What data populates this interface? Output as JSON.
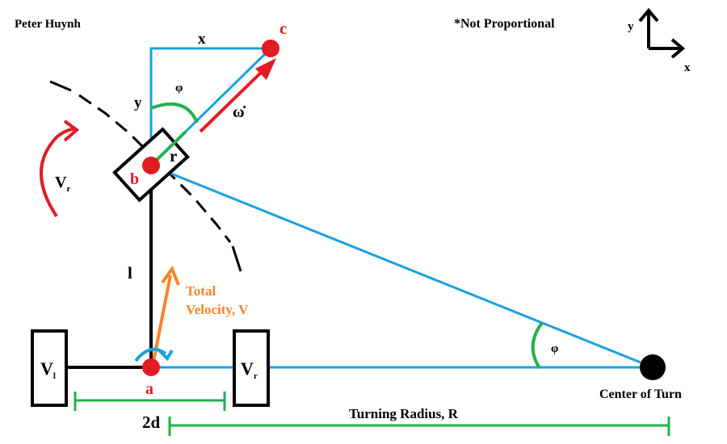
{
  "author": "Peter Huynh",
  "note": "*Not Proportional",
  "axes": {
    "x": "x",
    "y": "y"
  },
  "points": {
    "a": "a",
    "b": "b",
    "c": "c",
    "center": "Center of Turn"
  },
  "labels": {
    "x_offset": "x",
    "y_offset": "y",
    "phi_top": "φ",
    "phi_bottom": "φ",
    "omega": "ω̇",
    "r": "r",
    "l": "l",
    "vr_rot_main": "V",
    "vr_rot_sub": "r",
    "total_velocity_line1": "Total",
    "total_velocity_line2": "Velocity, V",
    "left_wheel_main": "V",
    "left_wheel_sub": "l",
    "right_wheel_main": "V",
    "right_wheel_sub": "r",
    "two_d": "2d",
    "turning_radius": "Turning Radius, R"
  },
  "colors": {
    "blue": "#1ba1e2",
    "red": "#e31b23",
    "green": "#22b14c",
    "orange": "#f7842a",
    "black": "#000000"
  }
}
